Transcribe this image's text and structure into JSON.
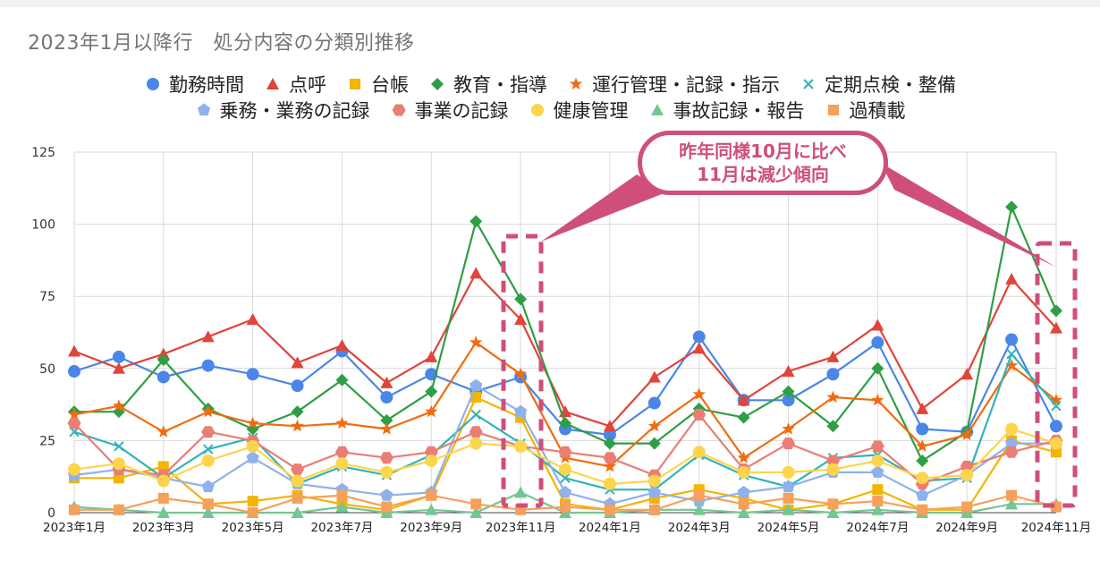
{
  "title": "2023年1月以降行　処分内容の分類別推移",
  "callout": {
    "line1": "昨年同様10月に比べ",
    "line2": "11月は減少傾向"
  },
  "colors": {
    "callout": "#cf4f79",
    "grid": "#d9d9d9"
  },
  "chart_data": {
    "type": "line",
    "x": [
      "2023年1月",
      "2023年2月",
      "2023年3月",
      "2023年4月",
      "2023年5月",
      "2023年6月",
      "2023年7月",
      "2023年8月",
      "2023年9月",
      "2023年10月",
      "2023年11月",
      "2023年12月",
      "2024年1月",
      "2024年2月",
      "2024年3月",
      "2024年4月",
      "2024年5月",
      "2024年6月",
      "2024年7月",
      "2024年8月",
      "2024年9月",
      "2024年10月",
      "2024年11月"
    ],
    "x_tick_labels": [
      "2023年1月",
      "2023年3月",
      "2023年5月",
      "2023年7月",
      "2023年9月",
      "2023年11月",
      "2024年1月",
      "2024年3月",
      "2024年5月",
      "2024年7月",
      "2024年9月",
      "2024年11月"
    ],
    "y_ticks": [
      0,
      25,
      50,
      75,
      100,
      125
    ],
    "ylim": [
      0,
      125
    ],
    "grid": true,
    "legend_position": "top",
    "series": [
      {
        "name": "勤務時間",
        "color": "#4a86e8",
        "marker": "circle",
        "values": [
          49,
          54,
          47,
          51,
          48,
          44,
          56,
          40,
          48,
          42,
          47,
          29,
          27,
          38,
          61,
          39,
          39,
          48,
          59,
          29,
          28,
          60,
          30
        ]
      },
      {
        "name": "点呼",
        "color": "#e0443a",
        "marker": "triangle",
        "values": [
          56,
          50,
          55,
          61,
          67,
          52,
          58,
          45,
          54,
          83,
          67,
          35,
          30,
          47,
          57,
          39,
          49,
          54,
          65,
          36,
          48,
          81,
          64
        ]
      },
      {
        "name": "台帳",
        "color": "#f4b400",
        "marker": "square",
        "values": [
          12,
          12,
          16,
          3,
          4,
          6,
          3,
          1,
          6,
          40,
          33,
          3,
          1,
          5,
          8,
          5,
          1,
          3,
          8,
          1,
          1,
          25,
          21
        ]
      },
      {
        "name": "教育・指導",
        "color": "#2f9e44",
        "marker": "diamond",
        "values": [
          35,
          35,
          53,
          36,
          29,
          35,
          46,
          32,
          42,
          101,
          74,
          31,
          24,
          24,
          36,
          33,
          42,
          30,
          50,
          18,
          28,
          106,
          70
        ]
      },
      {
        "name": "運行管理・記録・指示",
        "color": "#f06c12",
        "marker": "star",
        "values": [
          34,
          37,
          28,
          35,
          31,
          30,
          31,
          29,
          35,
          59,
          48,
          19,
          16,
          30,
          41,
          19,
          29,
          40,
          39,
          23,
          27,
          51,
          39
        ]
      },
      {
        "name": "定期点検・整備",
        "color": "#32b3b8",
        "marker": "x",
        "values": [
          28,
          23,
          12,
          22,
          26,
          10,
          16,
          13,
          20,
          34,
          24,
          12,
          8,
          8,
          20,
          13,
          9,
          19,
          20,
          11,
          12,
          55,
          37
        ]
      },
      {
        "name": "乗務・業務の記録",
        "color": "#8fb1ec",
        "marker": "pentagon",
        "values": [
          13,
          15,
          12,
          9,
          19,
          10,
          8,
          6,
          7,
          44,
          35,
          7,
          3,
          7,
          4,
          7,
          9,
          14,
          14,
          6,
          13,
          24,
          24
        ]
      },
      {
        "name": "事業の記録",
        "color": "#ea7d74",
        "marker": "hexagon",
        "values": [
          31,
          15,
          13,
          28,
          25,
          15,
          21,
          19,
          21,
          28,
          23,
          21,
          19,
          13,
          34,
          15,
          24,
          18,
          23,
          10,
          16,
          21,
          25
        ]
      },
      {
        "name": "健康管理",
        "color": "#fdd54c",
        "marker": "circle",
        "values": [
          15,
          17,
          11,
          18,
          23,
          11,
          17,
          14,
          18,
          24,
          23,
          15,
          10,
          11,
          21,
          14,
          14,
          15,
          18,
          12,
          13,
          29,
          24
        ]
      },
      {
        "name": "事故記録・報告",
        "color": "#74c693",
        "marker": "triangle",
        "values": [
          2,
          1,
          0,
          0,
          0,
          0,
          2,
          0,
          1,
          0,
          7,
          0,
          0,
          1,
          1,
          0,
          1,
          0,
          1,
          0,
          0,
          3,
          3
        ]
      },
      {
        "name": "過積載",
        "color": "#f6a05a",
        "marker": "square",
        "values": [
          1,
          1,
          5,
          3,
          0,
          5,
          6,
          2,
          6,
          3,
          1,
          2,
          1,
          1,
          6,
          3,
          5,
          3,
          4,
          1,
          2,
          6,
          2
        ]
      }
    ]
  }
}
